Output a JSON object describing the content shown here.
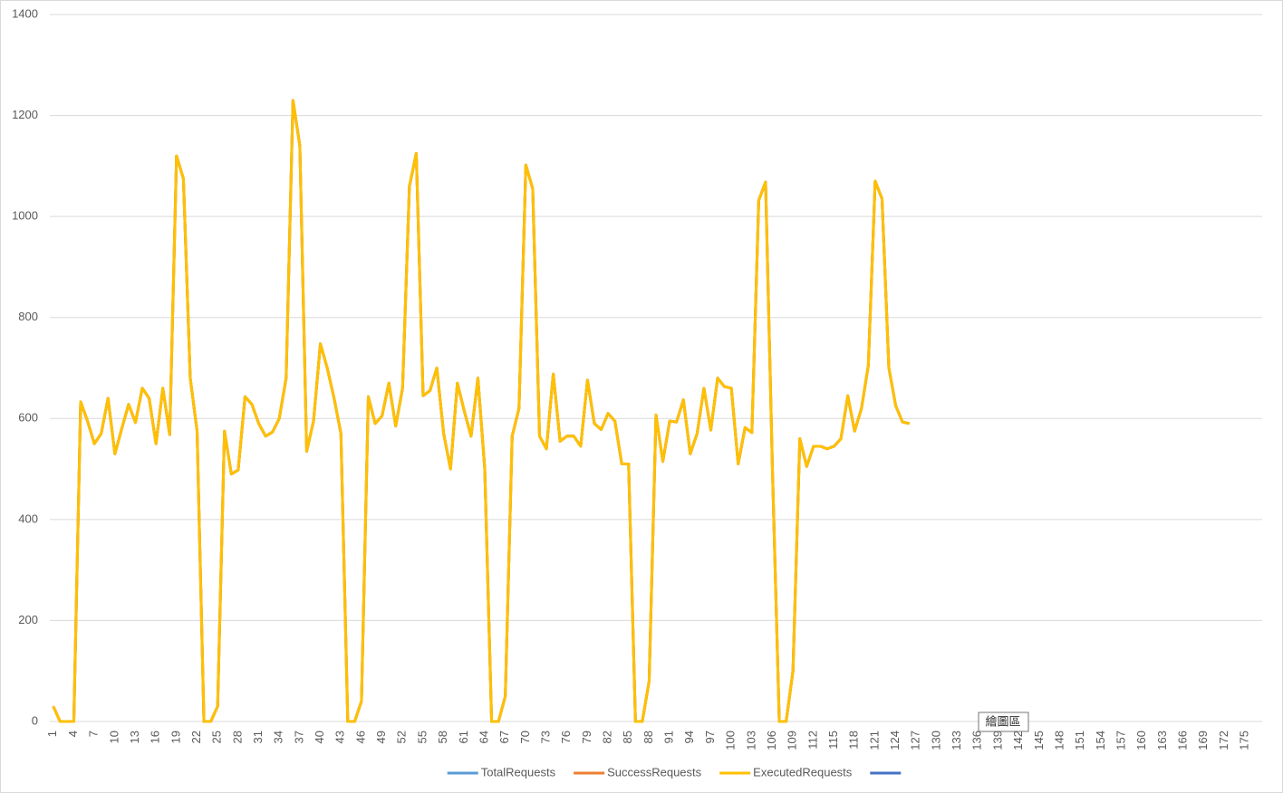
{
  "chart_data": {
    "type": "line",
    "categories": [
      1,
      null,
      null,
      4,
      null,
      null,
      7,
      null,
      null,
      10,
      null,
      null,
      13,
      null,
      null,
      16,
      null,
      null,
      19,
      null,
      null,
      22,
      null,
      null,
      25,
      null,
      null,
      28,
      null,
      null,
      31,
      null,
      null,
      34,
      null,
      null,
      37,
      null,
      null,
      40,
      null,
      null,
      43,
      null,
      null,
      46,
      null,
      null,
      49,
      null,
      null,
      52,
      null,
      null,
      55,
      null,
      null,
      58,
      null,
      null,
      61,
      null,
      null,
      64,
      null,
      null,
      67,
      null,
      null,
      70,
      null,
      null,
      73,
      null,
      null,
      76,
      null,
      null,
      79,
      null,
      null,
      82,
      null,
      null,
      85,
      null,
      null,
      88,
      null,
      null,
      91,
      null,
      null,
      94,
      null,
      null,
      97,
      null,
      null,
      100,
      null,
      null,
      103,
      null,
      null,
      106,
      null,
      null,
      109,
      null,
      null,
      112,
      null,
      null,
      115,
      null,
      null,
      118,
      null,
      null,
      121,
      null,
      null,
      124,
      null,
      null,
      127,
      null,
      null,
      130,
      null,
      null,
      133,
      null,
      null,
      136,
      null,
      null,
      139,
      null,
      null,
      142,
      null,
      null,
      145,
      null,
      null,
      148,
      null,
      null,
      151,
      null,
      null,
      154,
      null,
      null,
      157,
      null,
      null,
      160,
      null,
      null,
      163,
      null,
      null,
      166,
      null,
      null,
      169,
      null,
      null,
      172,
      null,
      null,
      175,
      null,
      null
    ],
    "series": [
      {
        "name": "TotalRequests",
        "color": "#5b9bd5",
        "values": [
          30,
          0,
          0,
          0,
          633,
          595,
          550,
          570,
          640,
          530,
          580,
          628,
          592,
          660,
          640,
          550,
          660,
          568,
          1120,
          1075,
          680,
          575,
          0,
          0,
          30,
          575,
          490,
          498,
          643,
          628,
          590,
          565,
          573,
          600,
          680,
          1230,
          1140,
          535,
          595,
          748,
          700,
          640,
          570,
          0,
          0,
          40,
          643,
          590,
          605,
          670,
          585,
          660,
          1060,
          1125,
          645,
          655,
          700,
          570,
          500,
          670,
          615,
          565,
          680,
          500,
          0,
          0,
          50,
          565,
          620,
          1102,
          1055,
          565,
          540,
          688,
          555,
          565,
          565,
          545,
          676,
          590,
          578,
          610,
          595,
          510,
          510,
          0,
          0,
          80,
          607,
          515,
          595,
          593,
          637,
          530,
          570,
          660,
          577,
          680,
          663,
          660,
          510,
          582,
          572,
          1032,
          1068,
          500,
          0,
          0,
          100,
          560,
          505,
          545,
          545,
          540,
          545,
          560,
          645,
          575,
          620,
          705,
          1070,
          1035,
          700,
          625,
          593,
          590,
          null,
          null,
          null,
          null,
          null,
          null,
          null,
          null,
          null,
          null,
          null,
          null,
          null,
          null,
          null,
          null,
          null,
          null,
          null,
          null,
          null,
          null,
          null,
          null,
          null,
          null,
          null,
          null,
          null,
          null,
          null,
          null,
          null,
          null,
          null,
          null,
          null,
          null,
          null,
          null,
          null,
          null,
          null,
          null,
          null,
          null,
          null,
          null,
          null,
          null,
          null
        ]
      },
      {
        "name": "SuccessRequests",
        "color": "#ed7d31",
        "values": [
          30,
          0,
          0,
          0,
          633,
          595,
          550,
          570,
          640,
          530,
          580,
          628,
          592,
          660,
          640,
          550,
          660,
          568,
          1120,
          1075,
          680,
          575,
          0,
          0,
          30,
          575,
          490,
          498,
          643,
          628,
          590,
          565,
          573,
          600,
          680,
          1230,
          1140,
          535,
          595,
          748,
          700,
          640,
          570,
          0,
          0,
          40,
          643,
          590,
          605,
          670,
          585,
          660,
          1060,
          1125,
          645,
          655,
          700,
          570,
          500,
          670,
          615,
          565,
          680,
          500,
          0,
          0,
          50,
          565,
          620,
          1102,
          1055,
          565,
          540,
          688,
          555,
          565,
          565,
          545,
          676,
          590,
          578,
          610,
          595,
          510,
          510,
          0,
          0,
          80,
          607,
          515,
          595,
          593,
          637,
          530,
          570,
          660,
          577,
          680,
          663,
          660,
          510,
          582,
          572,
          1032,
          1068,
          500,
          0,
          0,
          100,
          560,
          505,
          545,
          545,
          540,
          545,
          560,
          645,
          575,
          620,
          705,
          1070,
          1035,
          700,
          625,
          593,
          590,
          null,
          null,
          null,
          null,
          null,
          null,
          null,
          null,
          null,
          null,
          null,
          null,
          null,
          null,
          null,
          null,
          null,
          null,
          null,
          null,
          null,
          null,
          null,
          null,
          null,
          null,
          null,
          null,
          null,
          null,
          null,
          null,
          null,
          null,
          null,
          null,
          null,
          null,
          null,
          null,
          null,
          null,
          null,
          null,
          null,
          null,
          null,
          null,
          null,
          null,
          null
        ]
      },
      {
        "name": "ExecutedRequests",
        "color": "#ffc000",
        "values": [
          30,
          0,
          0,
          0,
          633,
          595,
          550,
          570,
          640,
          530,
          580,
          628,
          592,
          660,
          640,
          550,
          660,
          568,
          1120,
          1075,
          680,
          575,
          0,
          0,
          30,
          575,
          490,
          498,
          643,
          628,
          590,
          565,
          573,
          600,
          680,
          1230,
          1140,
          535,
          595,
          748,
          700,
          640,
          570,
          0,
          0,
          40,
          643,
          590,
          605,
          670,
          585,
          660,
          1060,
          1125,
          645,
          655,
          700,
          570,
          500,
          670,
          615,
          565,
          680,
          500,
          0,
          0,
          50,
          565,
          620,
          1102,
          1055,
          565,
          540,
          688,
          555,
          565,
          565,
          545,
          676,
          590,
          578,
          610,
          595,
          510,
          510,
          0,
          0,
          80,
          607,
          515,
          595,
          593,
          637,
          530,
          570,
          660,
          577,
          680,
          663,
          660,
          510,
          582,
          572,
          1032,
          1068,
          500,
          0,
          0,
          100,
          560,
          505,
          545,
          545,
          540,
          545,
          560,
          645,
          575,
          620,
          705,
          1070,
          1035,
          700,
          625,
          593,
          590,
          null,
          null,
          null,
          null,
          null,
          null,
          null,
          null,
          null,
          null,
          null,
          null,
          null,
          null,
          null,
          null,
          null,
          null,
          null,
          null,
          null,
          null,
          null,
          null,
          null,
          null,
          null,
          null,
          null,
          null,
          null,
          null,
          null,
          null,
          null,
          null,
          null,
          null,
          null,
          null,
          null,
          null,
          null,
          null,
          null,
          null,
          null,
          null,
          null,
          null,
          null
        ]
      },
      {
        "color": "#4472c4",
        "values": [
          null,
          null,
          null,
          null,
          null,
          null,
          null,
          null,
          null,
          null,
          null,
          null,
          null,
          null,
          null,
          null,
          null,
          null,
          null,
          null,
          null,
          null,
          null,
          null,
          null,
          null,
          null,
          null,
          null,
          null,
          null,
          null,
          null,
          null,
          null,
          null,
          null,
          null,
          null,
          null,
          null,
          null,
          null,
          null,
          null,
          null,
          null,
          null,
          null,
          null,
          null,
          null,
          null,
          null,
          null,
          null,
          null,
          null,
          null,
          null,
          null,
          null,
          null,
          null,
          null,
          null,
          null,
          null,
          null,
          null,
          null,
          null,
          null,
          null,
          null,
          null,
          null,
          null,
          null,
          null,
          null,
          null,
          null,
          null,
          null,
          null,
          null,
          null,
          null,
          null,
          null,
          null,
          null,
          null,
          null,
          null,
          null,
          null,
          null,
          null,
          null,
          null,
          null,
          null,
          null,
          null,
          null,
          null,
          null,
          null,
          null,
          null,
          null,
          null,
          null,
          null,
          null,
          null,
          null,
          null,
          null,
          null,
          null,
          null,
          null,
          null,
          null,
          null,
          null,
          null,
          null,
          null,
          null,
          null,
          null,
          null,
          null,
          null,
          null,
          null,
          null,
          null,
          null,
          null,
          null,
          null,
          null,
          null,
          null,
          null,
          null,
          null,
          null,
          null,
          null,
          null,
          null,
          null,
          null,
          null,
          null,
          null,
          null,
          null,
          null,
          null,
          null,
          null,
          null,
          null,
          null,
          null,
          null,
          null,
          null,
          null,
          null
        ]
      }
    ],
    "ylim": [
      0,
      1400
    ],
    "yticks": [
      0,
      200,
      400,
      600,
      800,
      1000,
      1200,
      1400
    ],
    "grid": true,
    "legend": "bottom"
  },
  "tooltip": "繪圖區"
}
